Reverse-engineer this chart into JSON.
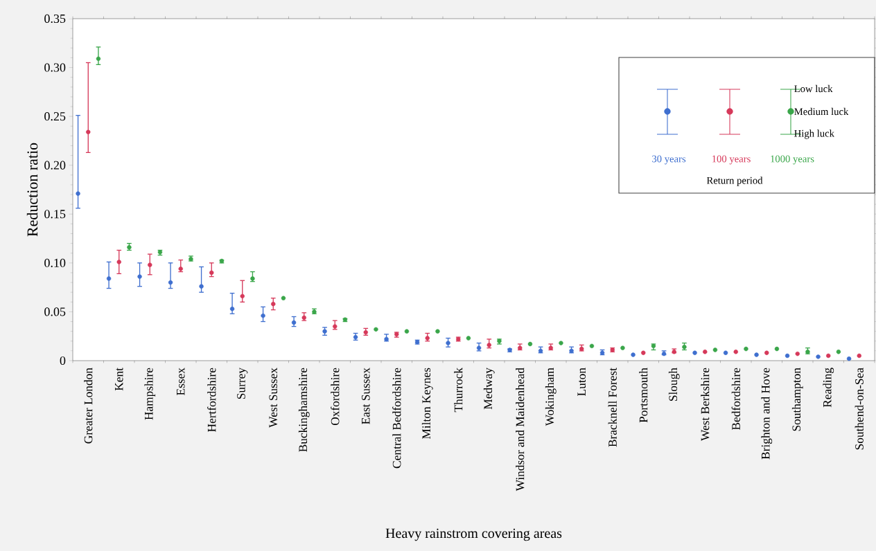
{
  "chart_data": {
    "type": "scatter",
    "xlabel": "Heavy rainstrom covering areas",
    "ylabel": "Reduction ratio",
    "legend_title": "Return period",
    "annotations": [
      "Low luck",
      "Medium luck",
      "High luck"
    ],
    "categories": [
      "Greater London",
      "Kent",
      "Hampshire",
      "Essex",
      "Hertfordshire",
      "Surrey",
      "West Sussex",
      "Buckinghamshire",
      "Oxfordshire",
      "East Sussex",
      "Central Bedfordshire",
      "Milton Keynes",
      "Thurrock",
      "Medway",
      "Windsor and Maidenhead",
      "Wokingham",
      "Luton",
      "Bracknell Forest",
      "Portsmouth",
      "Slough",
      "West Berkshire",
      "Bedfordshire",
      "Brighton and Hove",
      "Southampton",
      "Reading",
      "Southend-on-Sea"
    ],
    "ylim": [
      0,
      0.35
    ],
    "yticks": [
      0,
      0.05,
      {
        "value": 0.1,
        "label": "0.10"
      },
      0.15,
      {
        "value": 0.2,
        "label": "0.20"
      },
      0.25,
      {
        "value": 0.3,
        "label": "0.30"
      },
      0.35
    ],
    "grid": false,
    "legend": "top right",
    "marker": "circle",
    "series": [
      {
        "name": "30 years",
        "color": "#3f6fcf",
        "values": [
          0.171,
          0.084,
          0.086,
          0.08,
          0.076,
          0.053,
          0.046,
          0.039,
          0.03,
          0.024,
          0.022,
          0.019,
          0.018,
          0.013,
          0.011,
          0.01,
          0.01,
          0.008,
          0.006,
          0.007,
          0.008,
          0.008,
          0.006,
          0.005,
          0.004,
          0.002
        ],
        "errors": [
          [
            0.156,
            0.251
          ],
          [
            0.074,
            0.101
          ],
          [
            0.076,
            0.1
          ],
          [
            0.074,
            0.1
          ],
          [
            0.07,
            0.096
          ],
          [
            0.048,
            0.069
          ],
          [
            0.04,
            0.055
          ],
          [
            0.035,
            0.045
          ],
          [
            0.026,
            0.034
          ],
          [
            0.021,
            0.028
          ],
          [
            0.02,
            0.027
          ],
          [
            0.017,
            0.021
          ],
          [
            0.014,
            0.023
          ],
          [
            0.01,
            0.018
          ],
          [
            0.009,
            0.012
          ],
          [
            0.008,
            0.014
          ],
          [
            0.008,
            0.014
          ],
          [
            0.006,
            0.011
          ],
          null,
          [
            0.006,
            0.01
          ],
          null,
          null,
          null,
          null,
          null,
          null
        ]
      },
      {
        "name": "100 years",
        "color": "#d6395a",
        "values": [
          0.234,
          0.101,
          0.098,
          0.094,
          0.09,
          0.066,
          0.058,
          0.044,
          0.035,
          0.029,
          0.027,
          0.023,
          0.022,
          0.016,
          0.013,
          0.013,
          0.012,
          0.011,
          0.008,
          0.009,
          0.009,
          0.009,
          0.008,
          0.007,
          0.005,
          0.005
        ],
        "errors": [
          [
            0.213,
            0.305
          ],
          [
            0.089,
            0.113
          ],
          [
            0.088,
            0.109
          ],
          [
            0.091,
            0.103
          ],
          [
            0.086,
            0.1
          ],
          [
            0.06,
            0.082
          ],
          [
            0.052,
            0.064
          ],
          [
            0.041,
            0.049
          ],
          [
            0.032,
            0.041
          ],
          [
            0.026,
            0.033
          ],
          [
            0.024,
            0.029
          ],
          [
            0.02,
            0.028
          ],
          [
            0.02,
            0.024
          ],
          [
            0.013,
            0.022
          ],
          [
            0.011,
            0.017
          ],
          [
            0.011,
            0.017
          ],
          [
            0.01,
            0.016
          ],
          [
            0.009,
            0.013
          ],
          null,
          [
            0.008,
            0.012
          ],
          null,
          null,
          null,
          null,
          null,
          null
        ]
      },
      {
        "name": "1000 years",
        "color": "#3aa64a",
        "values": [
          0.309,
          0.116,
          0.111,
          0.104,
          0.102,
          0.084,
          0.064,
          0.05,
          0.042,
          0.032,
          0.03,
          0.03,
          0.023,
          0.02,
          0.017,
          0.018,
          0.015,
          0.013,
          0.015,
          0.014,
          0.011,
          0.012,
          0.012,
          0.009,
          0.009,
          null
        ],
        "errors": [
          [
            0.303,
            0.321
          ],
          [
            0.113,
            0.12
          ],
          [
            0.108,
            0.113
          ],
          [
            0.102,
            0.107
          ],
          [
            0.1,
            0.103
          ],
          [
            0.081,
            0.091
          ],
          null,
          [
            0.048,
            0.053
          ],
          [
            0.04,
            0.043
          ],
          null,
          null,
          null,
          null,
          [
            0.017,
            0.022
          ],
          null,
          null,
          null,
          null,
          [
            0.011,
            0.017
          ],
          [
            0.011,
            0.018
          ],
          null,
          null,
          null,
          [
            0.007,
            0.013
          ],
          null,
          null
        ]
      }
    ]
  }
}
